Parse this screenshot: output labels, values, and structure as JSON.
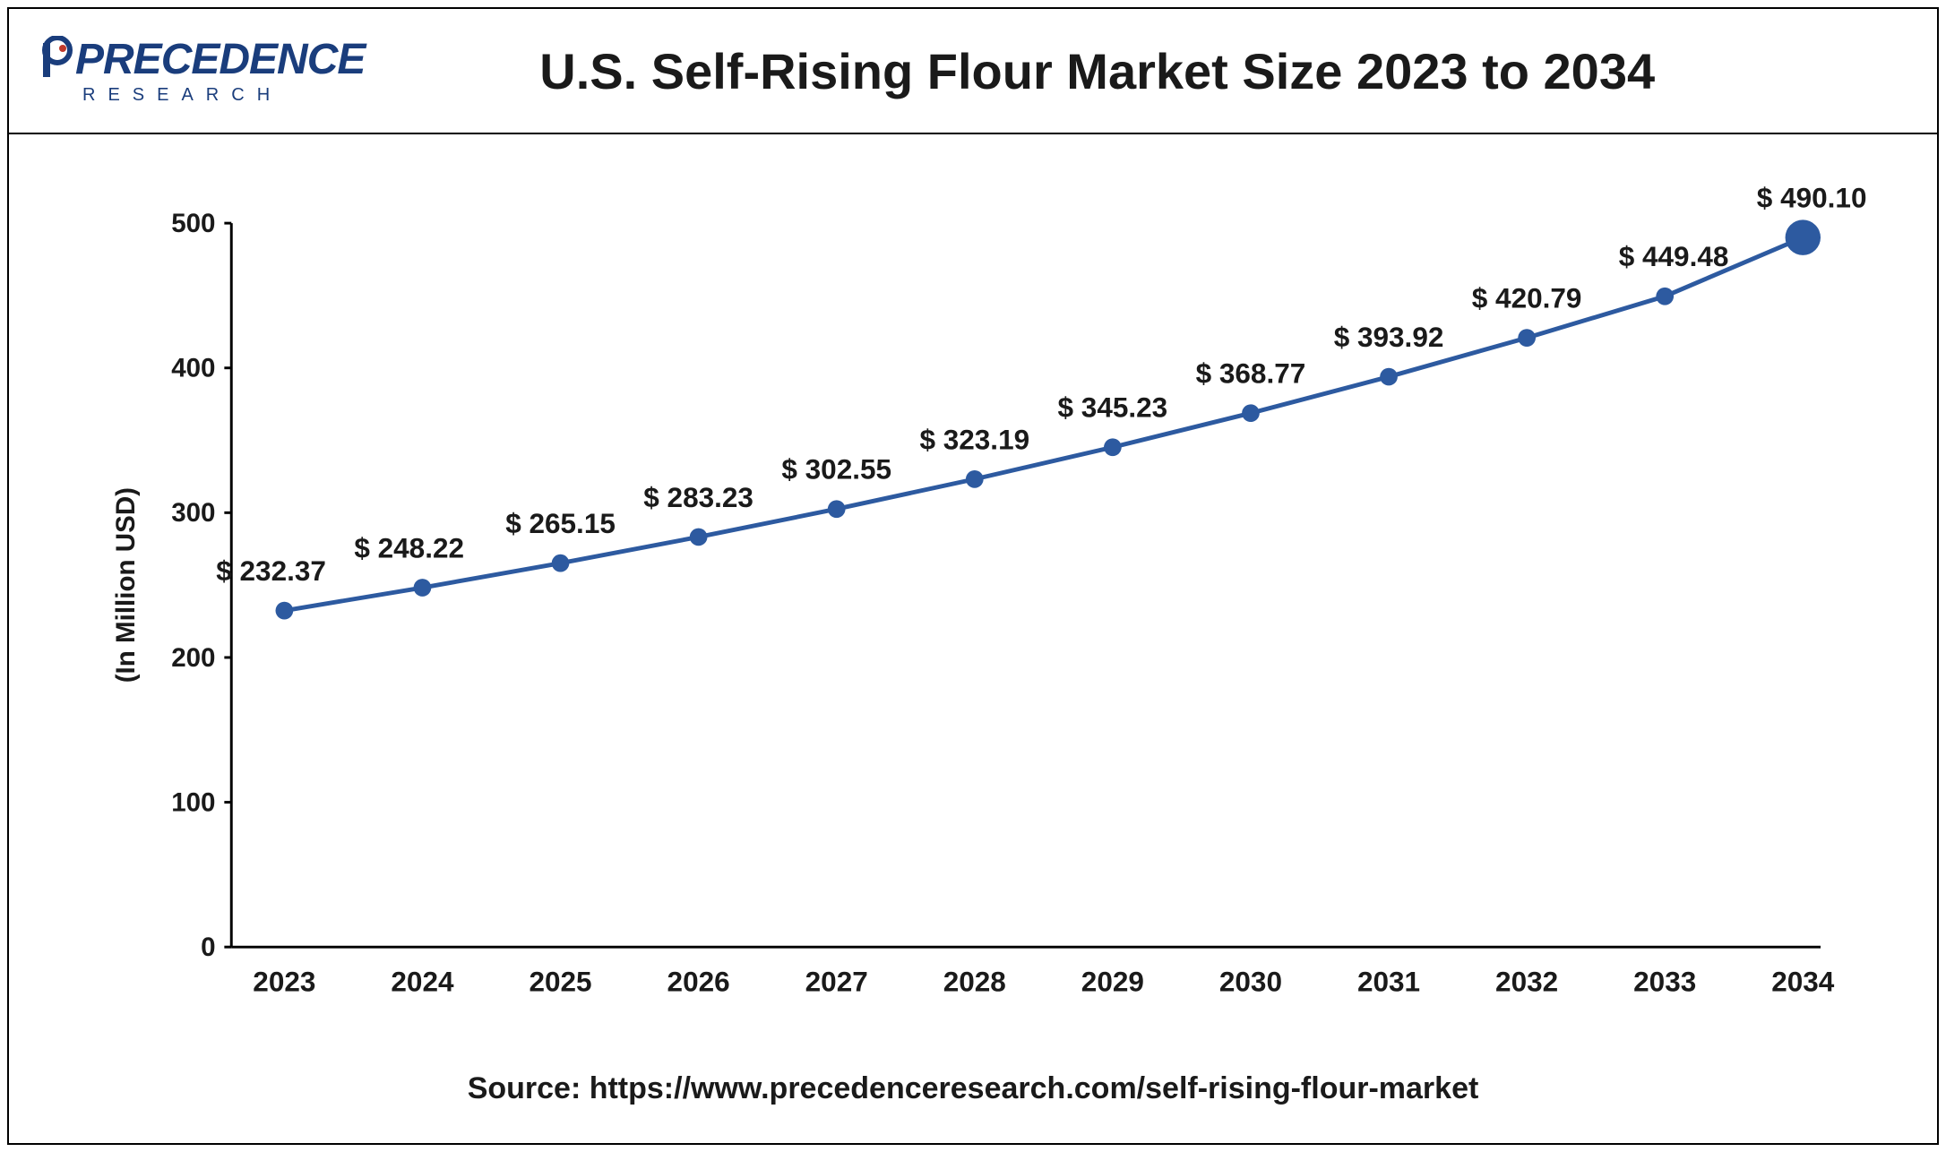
{
  "logo": {
    "main": "PRECEDENCE",
    "sub": "RESEARCH"
  },
  "chart": {
    "type": "line",
    "title": "U.S. Self-Rising Flour Market Size 2023 to 2034",
    "y_axis_label": "(In Million USD)",
    "source_text": "Source: https://www.precedenceresearch.com/self-rising-flour-market",
    "line_color": "#2d5aa0",
    "marker_color": "#2d5aa0",
    "marker_radius": 10,
    "last_marker_radius": 20,
    "line_width": 5,
    "background_color": "#ffffff",
    "ylim": [
      0,
      500
    ],
    "ytick_step": 100,
    "yticks": [
      0,
      100,
      200,
      300,
      400,
      500
    ],
    "categories": [
      "2023",
      "2024",
      "2025",
      "2026",
      "2027",
      "2028",
      "2029",
      "2030",
      "2031",
      "2032",
      "2033",
      "2034"
    ],
    "values": [
      232.37,
      248.22,
      265.15,
      283.23,
      302.55,
      323.19,
      345.23,
      368.77,
      393.92,
      420.79,
      449.48,
      490.1
    ],
    "value_labels": [
      "$ 232.37",
      "$ 248.22",
      "$ 265.15",
      "$ 283.23",
      "$ 302.55",
      "$ 323.19",
      "$ 345.23",
      "$ 368.77",
      "$ 393.92",
      "$ 420.79",
      "$ 449.48",
      "$ 490.10"
    ],
    "title_fontsize": 56,
    "axis_label_fontsize": 30,
    "tick_fontsize_x": 32,
    "tick_fontsize_y": 30,
    "data_label_fontsize": 32
  }
}
